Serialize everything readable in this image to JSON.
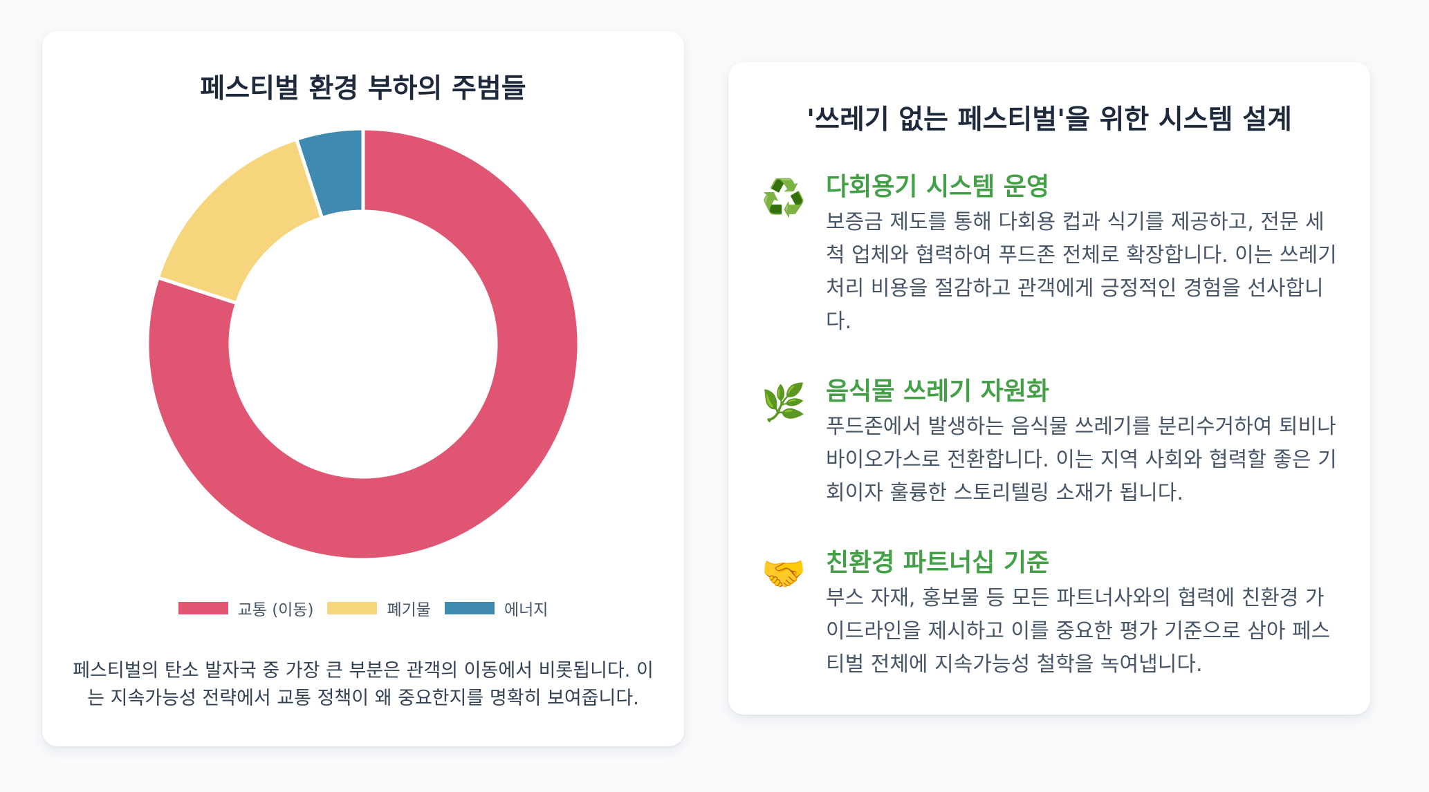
{
  "left_card": {
    "title": "페스티벌 환경 부하의 주범들",
    "caption": "페스티벌의 탄소 발자국 중 가장 큰 부분은 관객의 이동에서 비롯됩니다. 이는 지속가능성 전략에서 교통 정책이 왜 중요한지를 명확히 보여줍니다."
  },
  "chart_data": {
    "type": "pie",
    "variant": "doughnut",
    "categories": [
      "교통 (이동)",
      "폐기물",
      "에너지"
    ],
    "values": [
      80,
      15,
      5
    ],
    "colors": [
      "#e05572",
      "#f7d57c",
      "#3f8ab0"
    ],
    "legend_position": "bottom",
    "title": "페스티벌 환경 부하의 주범들"
  },
  "right_card": {
    "title": "'쓰레기 없는 페스티벌'을 위한 시스템 설계",
    "features": [
      {
        "icon": "recycle-icon",
        "glyph": "♻️",
        "title": "다회용기 시스템 운영",
        "description": "보증금 제도를 통해 다회용 컵과 식기를 제공하고, 전문 세척 업체와 협력하여 푸드존 전체로 확장합니다. 이는 쓰레기 처리 비용을 절감하고 관객에게 긍정적인 경험을 선사합니다."
      },
      {
        "icon": "herb-icon",
        "glyph": "🌿",
        "title": "음식물 쓰레기 자원화",
        "description": "푸드존에서 발생하는 음식물 쓰레기를 분리수거하여 퇴비나 바이오가스로 전환합니다. 이는 지역 사회와 협력할 좋은 기회이자 훌륭한 스토리텔링 소재가 됩니다."
      },
      {
        "icon": "handshake-icon",
        "glyph": "🤝",
        "title": "친환경 파트너십 기준",
        "description": "부스 자재, 홍보물 등 모든 파트너사와의 협력에 친환경 가이드라인을 제시하고 이를 중요한 평가 기준으로 삼아 페스티벌 전체에 지속가능성 철학을 녹여냅니다."
      }
    ]
  }
}
